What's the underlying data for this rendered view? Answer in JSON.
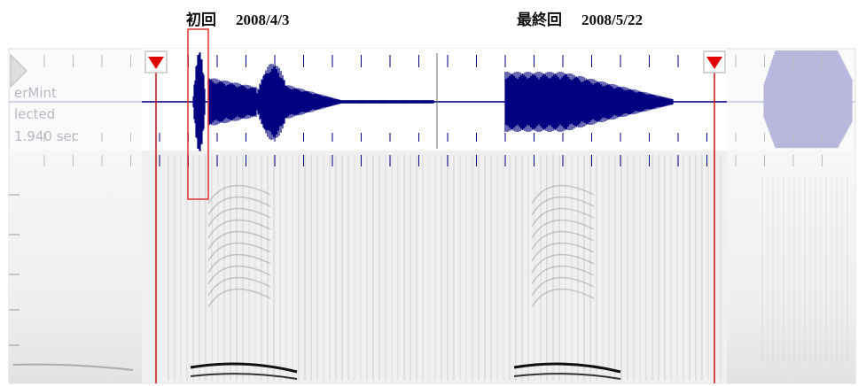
{
  "labels": {
    "first": "初回",
    "first_date": "2008/4/3",
    "last": "最終回",
    "last_date": "2008/5/22"
  },
  "overlay": {
    "name": "erMint",
    "state": "lected",
    "duration": "1.940 sec"
  }
}
